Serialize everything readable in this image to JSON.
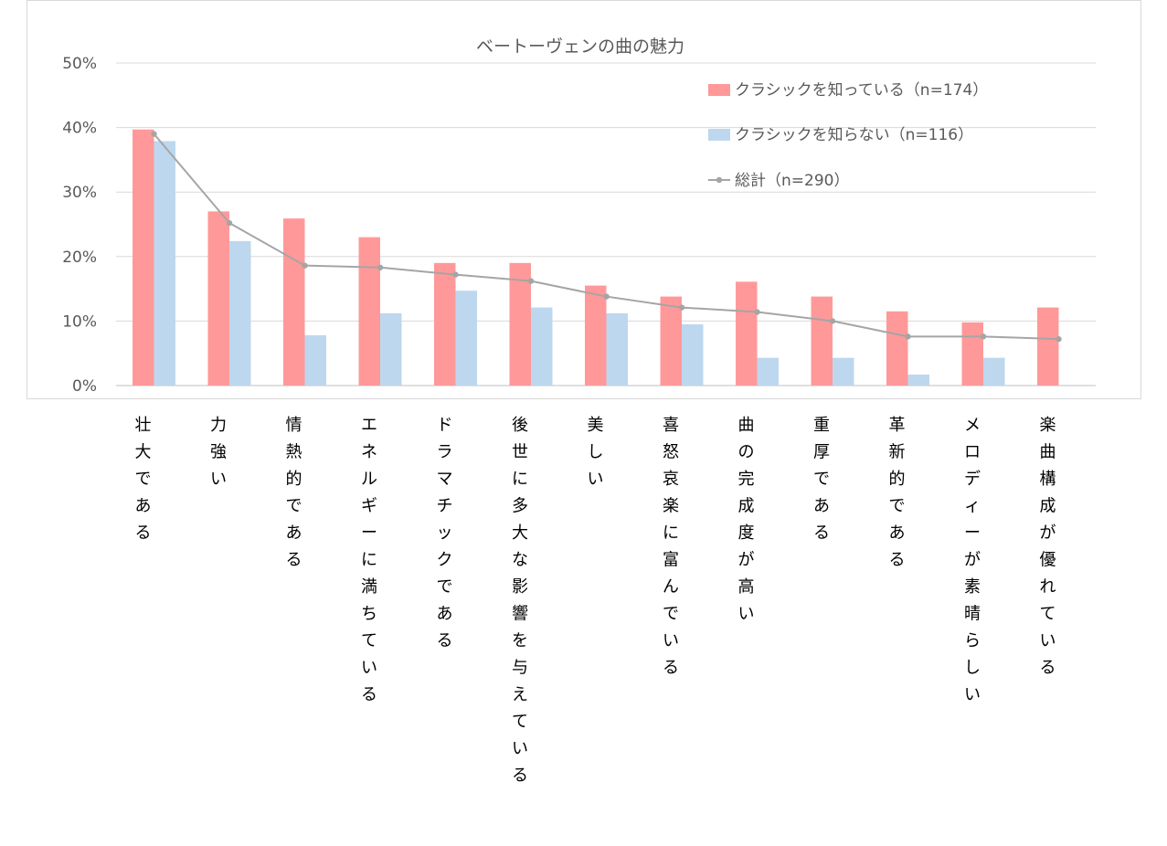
{
  "chart_data": {
    "type": "bar",
    "title": "ベートーヴェンの曲の魅力",
    "xlabel": "",
    "ylabel": "",
    "ylim": [
      0,
      50
    ],
    "yticks": [
      "0%",
      "10%",
      "20%",
      "30%",
      "40%",
      "50%"
    ],
    "grid": true,
    "legend_position": "top-right",
    "categories": [
      "壮大である",
      "力強い",
      "情熱的である",
      "エネルギーに満ちている",
      "ドラマチックである",
      "後世に多大な影響を与えている",
      "美しい",
      "喜怒哀楽に富んでいる",
      "曲の完成度が高い",
      "重厚である",
      "革新的である",
      "メロディーが素晴らしい",
      "楽曲構成が優れている"
    ],
    "series": [
      {
        "name": "クラシックを知っている（n=174）",
        "type": "bar",
        "color": "#ff9999",
        "values": [
          39.7,
          27.0,
          25.9,
          23.0,
          19.0,
          19.0,
          15.5,
          13.8,
          16.1,
          13.8,
          11.5,
          9.8,
          12.1
        ]
      },
      {
        "name": "クラシックを知らない（n=116）",
        "type": "bar",
        "color": "#bdd7ee",
        "values": [
          37.9,
          22.4,
          7.8,
          11.2,
          14.7,
          12.1,
          11.2,
          9.5,
          4.3,
          4.3,
          1.7,
          4.3,
          0
        ]
      },
      {
        "name": "総計（n=290）",
        "type": "line",
        "color": "#a5a5a5",
        "values": [
          39.0,
          25.2,
          18.6,
          18.3,
          17.2,
          16.2,
          13.8,
          12.1,
          11.4,
          10.0,
          7.6,
          7.6,
          7.2
        ]
      }
    ]
  }
}
